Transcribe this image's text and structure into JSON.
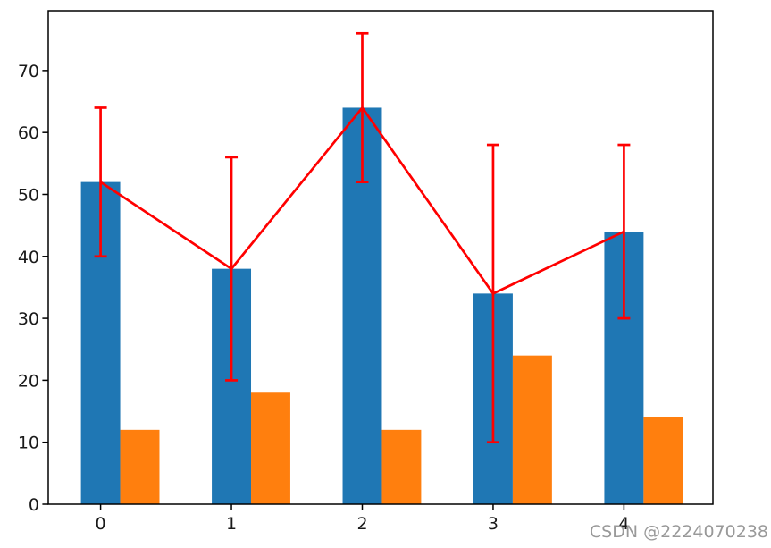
{
  "watermark": {
    "text": "CSDN @2224070238",
    "color": "#999999"
  },
  "chart_data": {
    "type": "bar",
    "title": "",
    "xlabel": "",
    "ylabel": "",
    "categories": [
      "0",
      "1",
      "2",
      "3",
      "4"
    ],
    "x": [
      0,
      1,
      2,
      3,
      4
    ],
    "series": [
      {
        "name": "blue-bars",
        "kind": "bar",
        "values": [
          52,
          38,
          64,
          34,
          44
        ],
        "color": "#1f77b4",
        "bar_width": 0.3,
        "offset": 0
      },
      {
        "name": "orange-bars",
        "kind": "bar",
        "values": [
          12,
          18,
          12,
          24,
          14
        ],
        "color": "#ff7f0e",
        "bar_width": 0.3,
        "offset": 0.3
      },
      {
        "name": "red-errorbar-line",
        "kind": "line",
        "values": [
          52,
          38,
          64,
          34,
          44
        ],
        "yerr": [
          12,
          18,
          12,
          24,
          14
        ],
        "color": "#ff0000"
      }
    ],
    "xlim": [
      -0.4,
      4.68
    ],
    "ylim": [
      0,
      79.65
    ],
    "xticks": [
      0,
      1,
      2,
      3,
      4
    ],
    "xtick_labels": [
      "0",
      "1",
      "2",
      "3",
      "4"
    ],
    "yticks": [
      0,
      10,
      20,
      30,
      40,
      50,
      60,
      70
    ],
    "ytick_labels": [
      "0",
      "10",
      "20",
      "30",
      "40",
      "50",
      "60",
      "70"
    ],
    "grid": false,
    "legend": "none",
    "axes": {
      "spine_color": "#000000",
      "tick_color": "#000000",
      "tick_label_color": "#1a1a1a"
    }
  }
}
